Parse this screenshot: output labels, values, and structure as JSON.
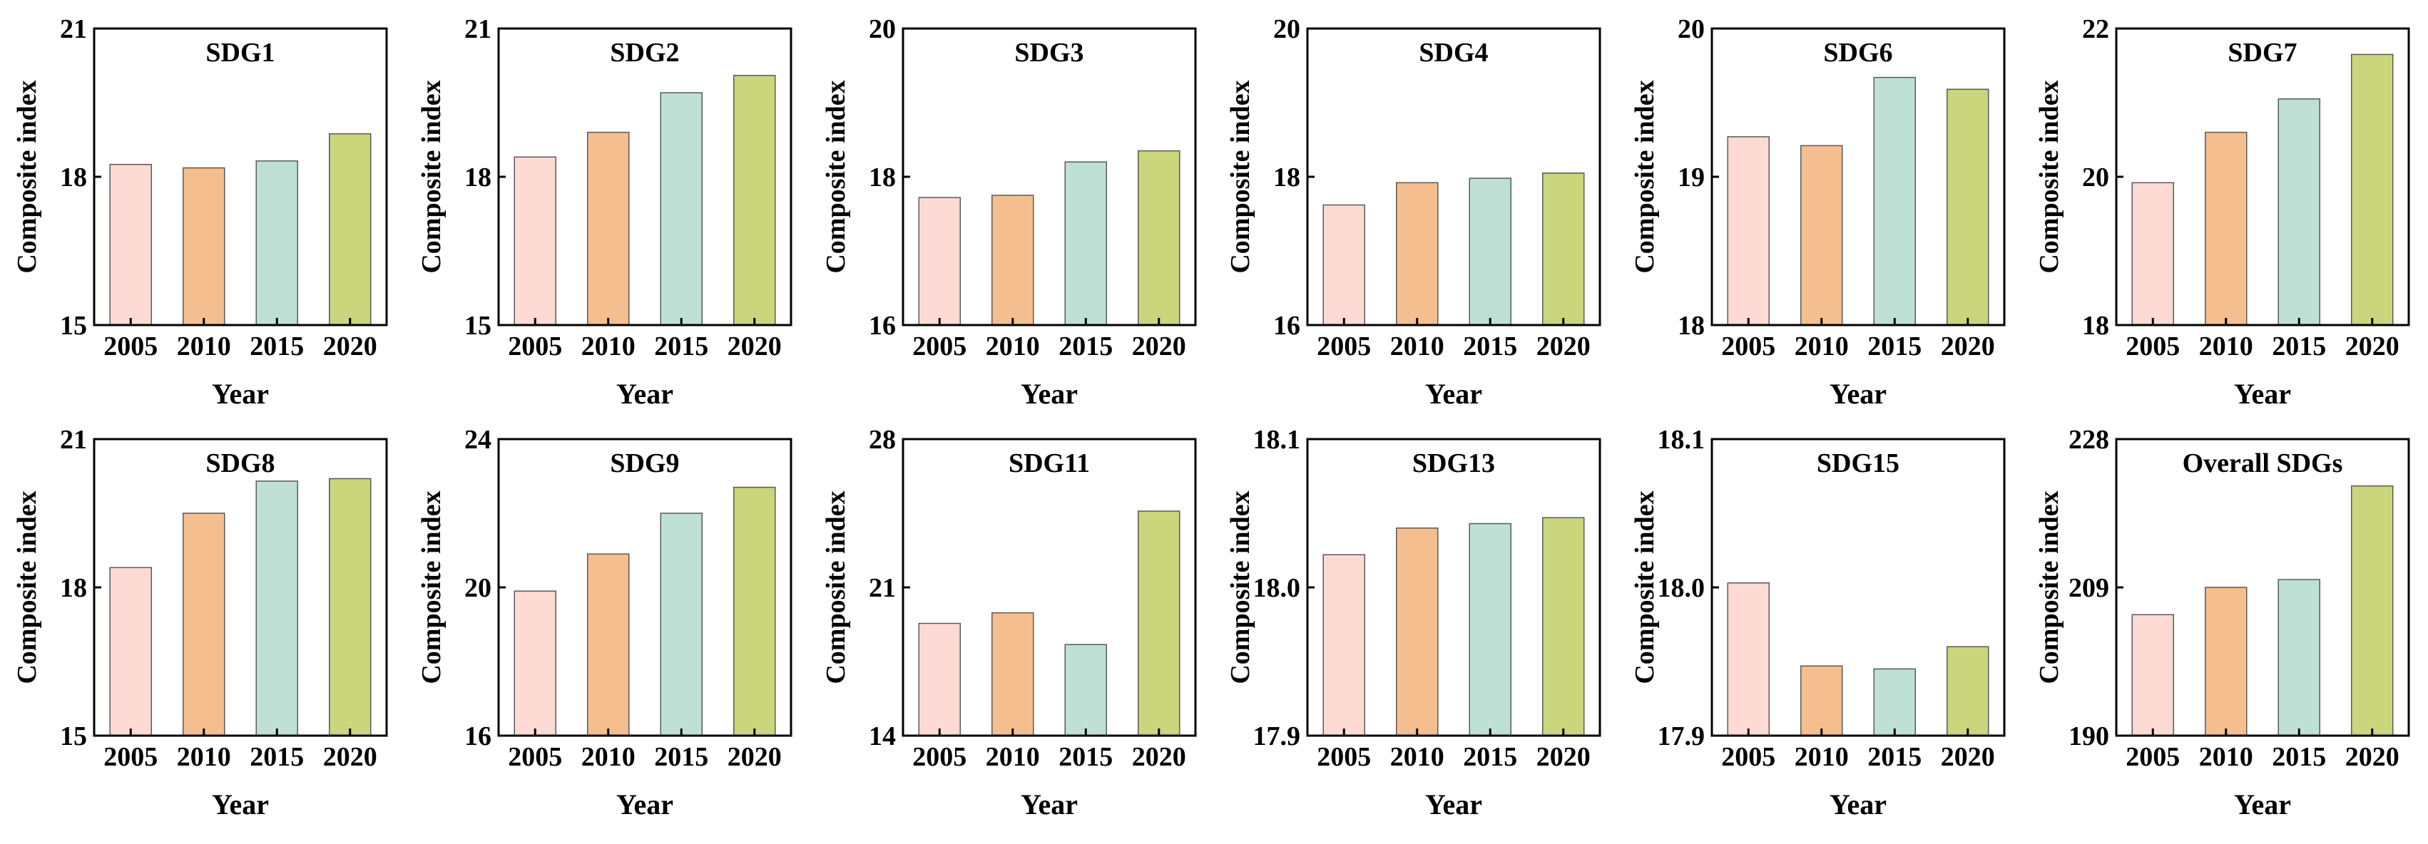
{
  "chart_data": [
    {
      "type": "bar",
      "title": "SDG1",
      "categories": [
        "2005",
        "2010",
        "2015",
        "2020"
      ],
      "values": [
        18.25,
        18.18,
        18.32,
        18.87
      ],
      "ylim": [
        15,
        21
      ],
      "yticks": [
        "15",
        "18",
        "21"
      ],
      "xlabel": "Year",
      "ylabel": "Composite index"
    },
    {
      "type": "bar",
      "title": "SDG2",
      "categories": [
        "2005",
        "2010",
        "2015",
        "2020"
      ],
      "values": [
        18.4,
        18.9,
        19.7,
        20.05
      ],
      "ylim": [
        15,
        21
      ],
      "yticks": [
        "15",
        "18",
        "21"
      ],
      "xlabel": "Year",
      "ylabel": "Composite index"
    },
    {
      "type": "bar",
      "title": "SDG3",
      "categories": [
        "2005",
        "2010",
        "2015",
        "2020"
      ],
      "values": [
        17.72,
        17.75,
        18.2,
        18.35
      ],
      "ylim": [
        16,
        20
      ],
      "yticks": [
        "16",
        "18",
        "20"
      ],
      "xlabel": "Year",
      "ylabel": "Composite index"
    },
    {
      "type": "bar",
      "title": "SDG4",
      "categories": [
        "2005",
        "2010",
        "2015",
        "2020"
      ],
      "values": [
        17.62,
        17.92,
        17.98,
        18.05
      ],
      "ylim": [
        16,
        20
      ],
      "yticks": [
        "16",
        "18",
        "20"
      ],
      "xlabel": "Year",
      "ylabel": "Composite index"
    },
    {
      "type": "bar",
      "title": "SDG6",
      "categories": [
        "2005",
        "2010",
        "2015",
        "2020"
      ],
      "values": [
        19.27,
        19.21,
        19.67,
        19.59
      ],
      "ylim": [
        18,
        20
      ],
      "yticks": [
        "18",
        "19",
        "20"
      ],
      "xlabel": "Year",
      "ylabel": "Composite index"
    },
    {
      "type": "bar",
      "title": "SDG7",
      "categories": [
        "2005",
        "2010",
        "2015",
        "2020"
      ],
      "values": [
        19.92,
        20.6,
        21.05,
        21.65
      ],
      "ylim": [
        18,
        22
      ],
      "yticks": [
        "18",
        "20",
        "22"
      ],
      "xlabel": "Year",
      "ylabel": "Composite index"
    },
    {
      "type": "bar",
      "title": "SDG8",
      "categories": [
        "2005",
        "2010",
        "2015",
        "2020"
      ],
      "values": [
        18.4,
        19.5,
        20.15,
        20.2
      ],
      "ylim": [
        15,
        21
      ],
      "yticks": [
        "15",
        "18",
        "21"
      ],
      "xlabel": "Year",
      "ylabel": "Composite index"
    },
    {
      "type": "bar",
      "title": "SDG9",
      "categories": [
        "2005",
        "2010",
        "2015",
        "2020"
      ],
      "values": [
        19.9,
        20.9,
        22.0,
        22.7
      ],
      "ylim": [
        16,
        24
      ],
      "yticks": [
        "16",
        "20",
        "24"
      ],
      "xlabel": "Year",
      "ylabel": "Composite index"
    },
    {
      "type": "bar",
      "title": "SDG11",
      "categories": [
        "2005",
        "2010",
        "2015",
        "2020"
      ],
      "values": [
        19.3,
        19.8,
        18.3,
        24.6
      ],
      "ylim": [
        14,
        28
      ],
      "yticks": [
        "14",
        "21",
        "28"
      ],
      "xlabel": "Year",
      "ylabel": "Composite index"
    },
    {
      "type": "bar",
      "title": "SDG13",
      "categories": [
        "2005",
        "2010",
        "2015",
        "2020"
      ],
      "values": [
        18.022,
        18.04,
        18.043,
        18.047
      ],
      "ylim": [
        17.9,
        18.1
      ],
      "yticks": [
        "17.9",
        "18.0",
        "18.1"
      ],
      "xlabel": "Year",
      "ylabel": "Composite index"
    },
    {
      "type": "bar",
      "title": "SDG15",
      "categories": [
        "2005",
        "2010",
        "2015",
        "2020"
      ],
      "values": [
        18.003,
        17.947,
        17.945,
        17.96
      ],
      "ylim": [
        17.9,
        18.1
      ],
      "yticks": [
        "17.9",
        "18.0",
        "18.1"
      ],
      "xlabel": "Year",
      "ylabel": "Composite index"
    },
    {
      "type": "bar",
      "title": "Overall SDGs",
      "categories": [
        "2005",
        "2010",
        "2015",
        "2020"
      ],
      "values": [
        205.5,
        209.0,
        210.0,
        222.0
      ],
      "ylim": [
        190,
        228
      ],
      "yticks": [
        "190",
        "209",
        "228"
      ],
      "xlabel": "Year",
      "ylabel": "Composite index"
    }
  ],
  "bar_colors": [
    "#fddbd4",
    "#f5be8f",
    "#bfe1d5",
    "#cad57c"
  ],
  "edge_color": "#595959"
}
